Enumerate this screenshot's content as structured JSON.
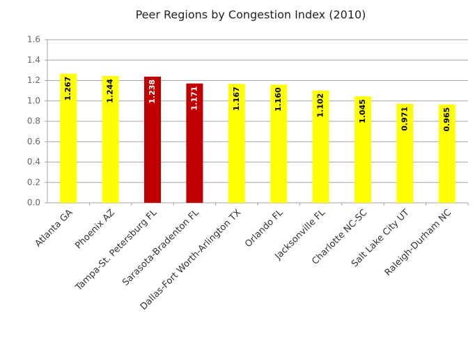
{
  "chart_data": {
    "type": "bar",
    "title": "Peer Regions by Congestion Index (2010)",
    "categories": [
      "Atlanta GA",
      "Phoenix AZ",
      "Tampa-St. Petersburg FL",
      "Sarasota-Bradenton FL",
      "Dallas-Fort Worth-Arlington TX",
      "Orlando FL",
      "Jacksonville FL",
      "Charlotte NC-SC",
      "Salt Lake City UT",
      "Raleigh-Durham NC"
    ],
    "values": [
      1.267,
      1.244,
      1.238,
      1.171,
      1.167,
      1.16,
      1.102,
      1.045,
      0.971,
      0.965
    ],
    "value_labels": [
      "1.267",
      "1.244",
      "1.238",
      "1.171",
      "1.167",
      "1.160",
      "1.102",
      "1.045",
      "0.971",
      "0.965"
    ],
    "colors": [
      "#ffff00",
      "#ffff00",
      "#c00000",
      "#c00000",
      "#ffff00",
      "#ffff00",
      "#ffff00",
      "#ffff00",
      "#ffff00",
      "#ffff00"
    ],
    "ylim": [
      0,
      1.6
    ],
    "yticks": [
      {
        "value": 0,
        "label": "0.0"
      },
      0.2,
      0.4,
      0.6,
      0.8,
      {
        "value": 1,
        "label": "1.0"
      },
      1.2,
      1.4,
      1.6
    ],
    "grid": true
  }
}
